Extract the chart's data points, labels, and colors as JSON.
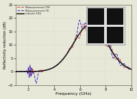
{
  "title": "",
  "xlabel": "Frequency (GHz)",
  "ylabel": "Reflectivity reduction (dB)",
  "xlim": [
    1,
    10
  ],
  "ylim": [
    -5,
    25
  ],
  "yticks": [
    -5,
    0,
    5,
    10,
    15,
    20,
    25
  ],
  "xticks": [
    2,
    4,
    6,
    8,
    10
  ],
  "legend": [
    "Measurement TM",
    "Measurement TE",
    "Infinite FSS"
  ],
  "bg_color": "#e8e8d8",
  "plot_bg": "#e8e8d8",
  "line_colors": [
    "#cc2222",
    "#2222cc",
    "#111111"
  ],
  "inset_bg": "#f0f0e8",
  "inset_border": "#888888",
  "patch_color": "#111111",
  "patch_bg": "#e0e0e0"
}
